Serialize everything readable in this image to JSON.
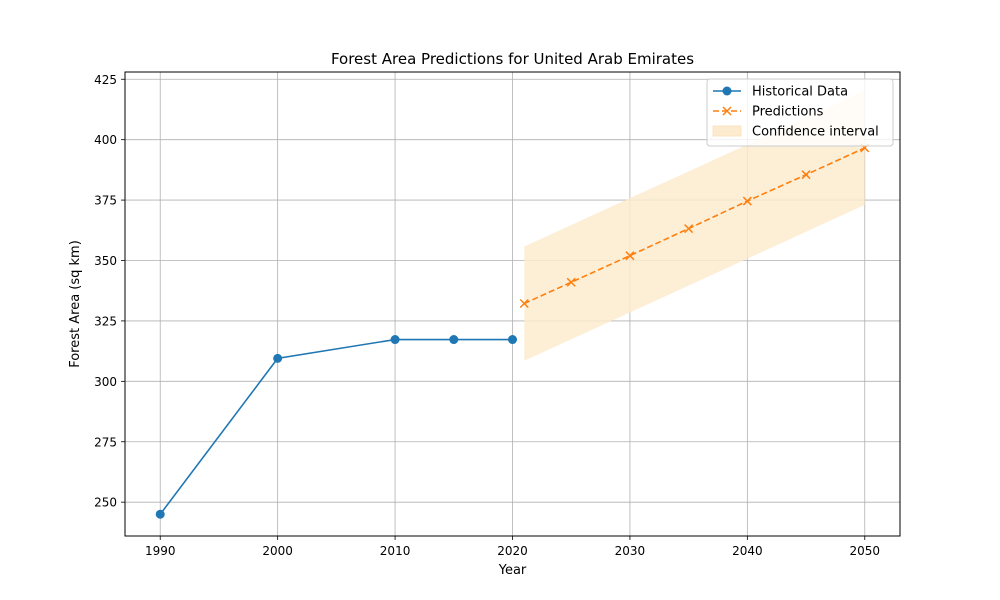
{
  "chart_data": {
    "type": "line",
    "title": "Forest Area Predictions for United Arab Emirates",
    "xlabel": "Year",
    "ylabel": "Forest Area (sq km)",
    "xlim": [
      1987,
      2053
    ],
    "ylim": [
      236,
      428
    ],
    "xticks": [
      1990,
      2000,
      2010,
      2020,
      2030,
      2040,
      2050
    ],
    "yticks": [
      250,
      275,
      300,
      325,
      350,
      375,
      400,
      425
    ],
    "grid": true,
    "legend_position": "top-right",
    "series": [
      {
        "name": "Historical Data",
        "color": "#1f77b4",
        "marker": "circle",
        "line_style": "solid",
        "x": [
          1990,
          2000,
          2010,
          2015,
          2020
        ],
        "y": [
          245,
          309.5,
          317.3,
          317.3,
          317.3
        ]
      },
      {
        "name": "Predictions",
        "color": "#ff7f0e",
        "marker": "x",
        "line_style": "dashed",
        "x": [
          2021,
          2025,
          2030,
          2035,
          2040,
          2045,
          2050
        ],
        "y": [
          332.2,
          341,
          352,
          363.2,
          374.6,
          385.5,
          396.6
        ]
      }
    ],
    "confidence_interval": {
      "name": "Confidence interval",
      "color": "#fdebcf",
      "x": [
        2021,
        2050
      ],
      "lower": [
        308.5,
        373
      ],
      "upper": [
        355.8,
        420.2
      ]
    }
  }
}
